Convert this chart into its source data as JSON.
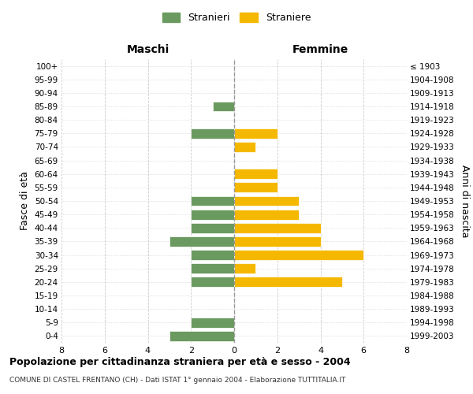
{
  "age_groups": [
    "100+",
    "95-99",
    "90-94",
    "85-89",
    "80-84",
    "75-79",
    "70-74",
    "65-69",
    "60-64",
    "55-59",
    "50-54",
    "45-49",
    "40-44",
    "35-39",
    "30-34",
    "25-29",
    "20-24",
    "15-19",
    "10-14",
    "5-9",
    "0-4"
  ],
  "birth_years": [
    "≤ 1903",
    "1904-1908",
    "1909-1913",
    "1914-1918",
    "1919-1923",
    "1924-1928",
    "1929-1933",
    "1934-1938",
    "1939-1943",
    "1944-1948",
    "1949-1953",
    "1954-1958",
    "1959-1963",
    "1964-1968",
    "1969-1973",
    "1974-1978",
    "1979-1983",
    "1984-1988",
    "1989-1993",
    "1994-1998",
    "1999-2003"
  ],
  "maschi": [
    0,
    0,
    0,
    1,
    0,
    2,
    0,
    0,
    0,
    0,
    2,
    2,
    2,
    3,
    2,
    2,
    2,
    0,
    0,
    2,
    3
  ],
  "femmine": [
    0,
    0,
    0,
    0,
    0,
    2,
    1,
    0,
    2,
    2,
    3,
    3,
    4,
    4,
    6,
    1,
    5,
    0,
    0,
    0,
    0
  ],
  "color_maschi": "#6a9a5f",
  "color_femmine": "#f5b800",
  "title": "Popolazione per cittadinanza straniera per età e sesso - 2004",
  "subtitle": "COMUNE DI CASTEL FRENTANO (CH) - Dati ISTAT 1° gennaio 2004 - Elaborazione TUTTITALIA.IT",
  "ylabel_left": "Fasce di età",
  "ylabel_right": "Anni di nascita",
  "xlabel_left": "Maschi",
  "xlabel_right": "Femmine",
  "legend_stranieri": "Stranieri",
  "legend_straniere": "Straniere",
  "xlim": 8,
  "background_color": "#ffffff",
  "grid_color": "#cccccc"
}
